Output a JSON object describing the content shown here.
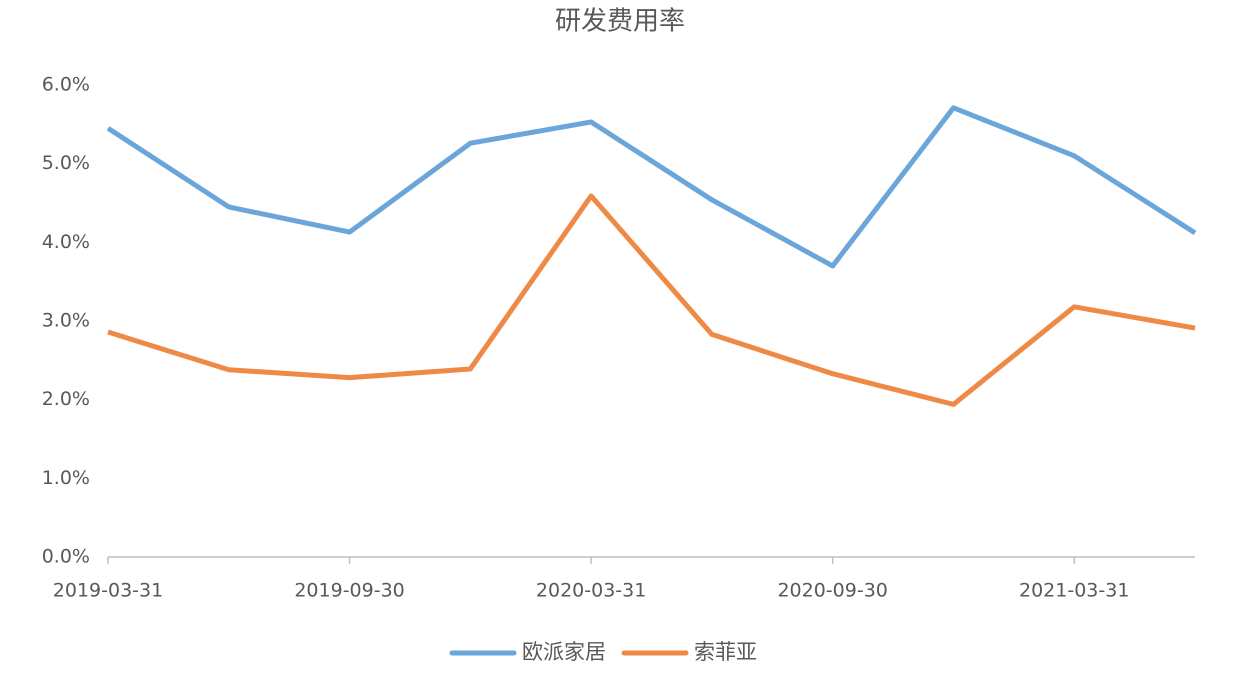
{
  "chart_data": {
    "type": "line",
    "title": "研发费用率",
    "categories": [
      "2019-03-31",
      null,
      "2019-09-30",
      null,
      "2020-03-31",
      null,
      "2020-09-30",
      null,
      "2021-03-31",
      null
    ],
    "series": [
      {
        "name": "欧派家居",
        "color": "#6aa6d9",
        "values": [
          5.45,
          4.45,
          4.13,
          5.26,
          5.53,
          4.54,
          3.7,
          5.71,
          5.1,
          4.12
        ]
      },
      {
        "name": "索菲亚",
        "color": "#ee8a45",
        "values": [
          2.86,
          2.38,
          2.28,
          2.39,
          4.59,
          2.83,
          2.33,
          1.94,
          3.18,
          2.91
        ]
      }
    ],
    "ylim": [
      0,
      6
    ],
    "yticks": [
      {
        "value": 0,
        "label": "0.0%"
      },
      {
        "value": 1,
        "label": "1.0%"
      },
      {
        "value": 2,
        "label": "2.0%"
      },
      {
        "value": 3,
        "label": "3.0%"
      },
      {
        "value": 4,
        "label": "4.0%"
      },
      {
        "value": 5,
        "label": "5.0%"
      },
      {
        "value": 6,
        "label": "6.0%"
      }
    ],
    "grid": false,
    "legend": "bottom"
  }
}
